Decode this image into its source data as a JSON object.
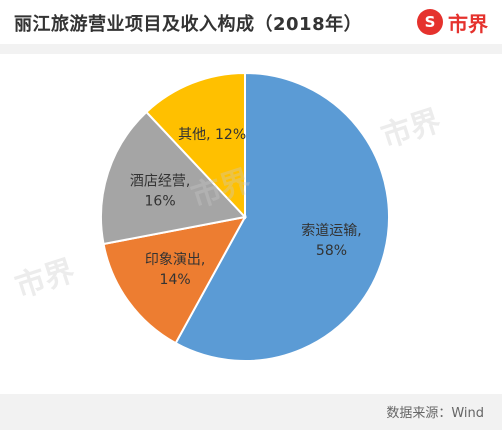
{
  "header": {
    "title": "丽江旅游营业项目及收入构成（2018年）",
    "logo_symbol": "S",
    "logo_text": "市界"
  },
  "watermark_text": "市界",
  "footer": {
    "source": "数据来源：Wind"
  },
  "colors": {
    "brand": "#e5322d",
    "slice_blue": "#5b9bd5",
    "slice_orange": "#ed7d31",
    "slice_gray": "#a5a5a5",
    "slice_yellow": "#ffc000"
  },
  "chart_data": {
    "type": "pie",
    "title": "丽江旅游营业项目及收入构成（2018年）",
    "slices": [
      {
        "label": "索道运输",
        "value": 58,
        "display": "58%",
        "color": "#5b9bd5"
      },
      {
        "label": "印象演出",
        "value": 14,
        "display": "14%",
        "color": "#ed7d31"
      },
      {
        "label": "酒店经营",
        "value": 16,
        "display": "16%",
        "color": "#a5a5a5"
      },
      {
        "label": "其他",
        "value": 12,
        "display": "12%",
        "color": "#ffc000"
      }
    ]
  }
}
